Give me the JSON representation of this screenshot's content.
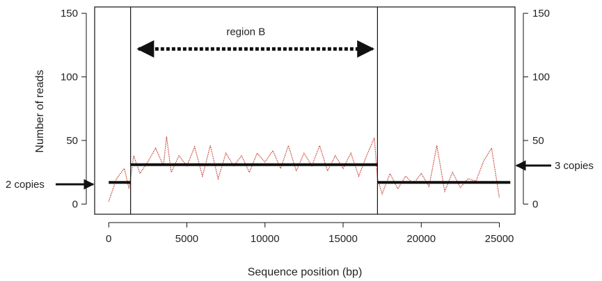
{
  "chart_data": {
    "type": "line",
    "xlabel": "Sequence position (bp)",
    "ylabel": "Number of reads",
    "xlim": [
      -900,
      26000
    ],
    "ylim": [
      -8,
      155
    ],
    "xticks": [
      0,
      5000,
      10000,
      15000,
      20000,
      25000
    ],
    "yticks": [
      0,
      50,
      100,
      150
    ],
    "grid": false,
    "colors": {
      "reads": "#c0392b",
      "segments": "#111111",
      "frame": "#111111"
    },
    "reads_trace": {
      "x": [
        0,
        500,
        1000,
        1300,
        1600,
        2000,
        2500,
        3000,
        3500,
        3700,
        4000,
        4500,
        5000,
        5500,
        6000,
        6500,
        7000,
        7500,
        8000,
        8500,
        9000,
        9500,
        10000,
        10500,
        11000,
        11500,
        12000,
        12500,
        13000,
        13500,
        14000,
        14500,
        15000,
        15500,
        16000,
        16500,
        17000,
        17200,
        17500,
        18000,
        18500,
        19000,
        19500,
        20000,
        20500,
        21000,
        21500,
        22000,
        22500,
        23000,
        23500,
        24000,
        24500,
        25000
      ],
      "y": [
        2,
        20,
        28,
        12,
        38,
        24,
        33,
        44,
        30,
        53,
        25,
        38,
        30,
        45,
        22,
        46,
        20,
        40,
        30,
        38,
        25,
        40,
        33,
        42,
        28,
        46,
        26,
        40,
        30,
        46,
        26,
        38,
        28,
        40,
        22,
        38,
        52,
        20,
        8,
        24,
        12,
        22,
        16,
        24,
        14,
        46,
        10,
        25,
        13,
        20,
        18,
        34,
        44,
        5
      ]
    },
    "segments": [
      {
        "x": [
          0,
          1400
        ],
        "y": 17
      },
      {
        "x": [
          1400,
          17200
        ],
        "y": 31
      },
      {
        "x": [
          17200,
          25700
        ],
        "y": 17
      }
    ],
    "boundaries": [
      1400,
      17200
    ],
    "region_arrow": {
      "x": [
        1900,
        16900
      ],
      "y": 122,
      "label": "region B"
    },
    "annotations": {
      "left": "2 copies",
      "right": "3 copies"
    }
  }
}
